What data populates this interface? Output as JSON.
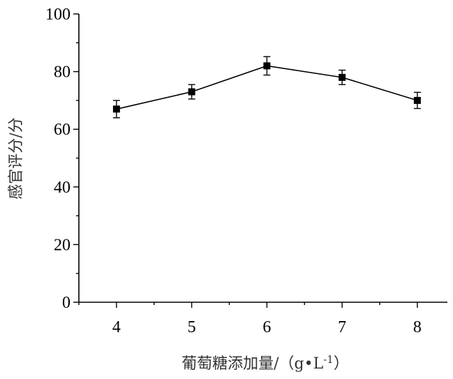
{
  "chart_data": {
    "type": "line",
    "x": [
      4,
      5,
      6,
      7,
      8
    ],
    "series": [
      {
        "values": [
          67,
          73,
          82,
          78,
          70
        ],
        "errors": [
          3,
          2.5,
          3.2,
          2.5,
          2.8
        ]
      }
    ],
    "xlabel": "葡萄糖添加量/（g•L-1）",
    "ylabel": "感官评分/分",
    "xlim": [
      3.5,
      8.4
    ],
    "ylim": [
      0,
      100
    ],
    "xticks": [
      4,
      5,
      6,
      7,
      8
    ],
    "yticks": [
      0,
      20,
      40,
      60,
      80,
      100
    ],
    "grid": false,
    "marker": "square",
    "color": "#000000"
  }
}
